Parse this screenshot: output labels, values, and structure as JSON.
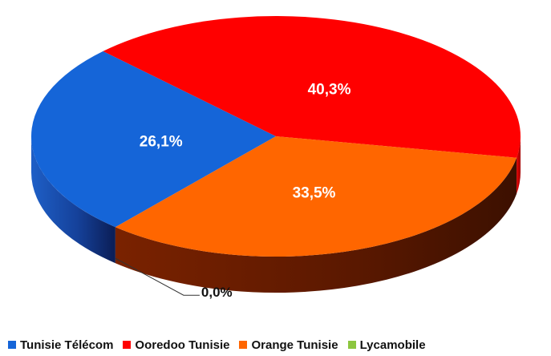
{
  "chart_data": {
    "type": "pie",
    "title": "",
    "categories": [
      "Tunisie Télécom",
      "Ooredoo Tunisie",
      "Orange Tunisie",
      "Lycamobile"
    ],
    "values": [
      26.1,
      40.3,
      33.5,
      0.0
    ],
    "labels": [
      "26,1%",
      "40,3%",
      "33,5%",
      "0,0%"
    ],
    "colors": [
      "#1565d8",
      "#ff0000",
      "#ff6600",
      "#8cc63f"
    ],
    "style": "3d",
    "legend_position": "bottom"
  }
}
